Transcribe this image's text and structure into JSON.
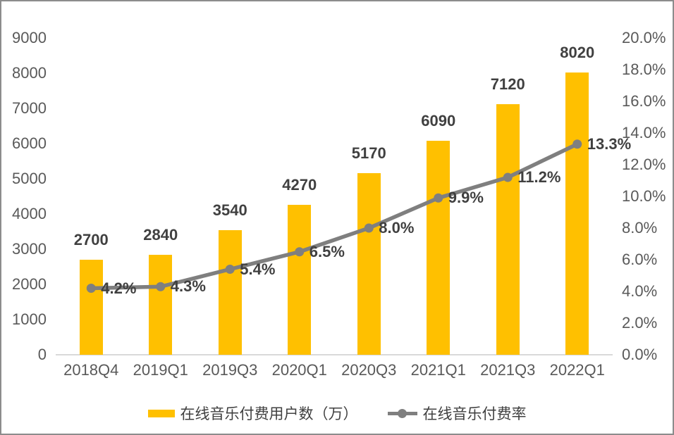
{
  "chart_data": {
    "type": "combo-bar-line",
    "categories": [
      "2018Q4",
      "2019Q1",
      "2019Q3",
      "2020Q1",
      "2020Q3",
      "2021Q1",
      "2021Q3",
      "2022Q1"
    ],
    "series": [
      {
        "name": "在线音乐付费用户数（万）",
        "type": "bar",
        "axis": "left",
        "color": "#FFC000",
        "values": [
          2700,
          2840,
          3540,
          4270,
          5170,
          6090,
          7120,
          8020
        ]
      },
      {
        "name": "在线音乐付费率",
        "type": "line",
        "axis": "right",
        "color": "#7F7F7F",
        "values": [
          4.2,
          4.3,
          5.4,
          6.5,
          8.0,
          9.9,
          11.2,
          13.3
        ]
      }
    ],
    "bar_data_labels": [
      "2700",
      "2840",
      "3540",
      "4270",
      "5170",
      "6090",
      "7120",
      "8020"
    ],
    "line_data_labels": [
      "4.2%",
      "4.3%",
      "5.4%",
      "6.5%",
      "8.0%",
      "9.9%",
      "11.2%",
      "13.3%"
    ],
    "left_axis": {
      "min": 0,
      "max": 9000,
      "step": 1000,
      "tick_labels": [
        "0",
        "1000",
        "2000",
        "3000",
        "4000",
        "5000",
        "6000",
        "7000",
        "8000",
        "9000"
      ]
    },
    "right_axis": {
      "min": 0,
      "max": 20,
      "step": 2,
      "tick_labels": [
        "0.0%",
        "2.0%",
        "4.0%",
        "6.0%",
        "8.0%",
        "10.0%",
        "12.0%",
        "14.0%",
        "16.0%",
        "18.0%",
        "20.0%"
      ]
    },
    "legend": [
      {
        "label": "在线音乐付费用户数（万）",
        "marker": "bar",
        "color": "#FFC000"
      },
      {
        "label": "在线音乐付费率",
        "marker": "line",
        "color": "#7F7F7F"
      }
    ],
    "title": "",
    "grid": "off",
    "legend_position": "bottom"
  },
  "colors": {
    "bar": "#FFC000",
    "line": "#7F7F7F",
    "data_label": "#404040",
    "axis_label": "#595959",
    "axis_line": "#D9D9D9",
    "border": "#8C8C8C",
    "background": "#FFFFFF"
  }
}
